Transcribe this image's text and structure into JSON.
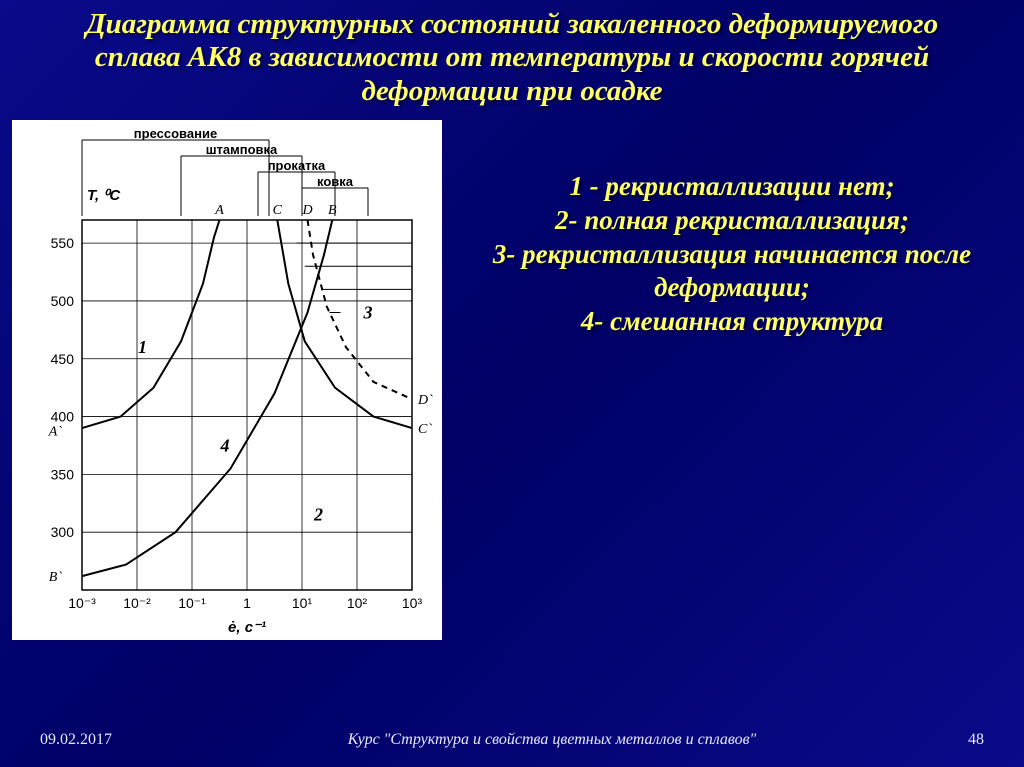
{
  "title": "Диаграмма структурных состояний закаленного деформируемого сплава АК8 в зависимости от температуры и скорости горячей деформации при осадке",
  "title_fontsize": 29,
  "legend_fontsize": 27,
  "legend": {
    "line1": "1 - рекристаллизации нет;",
    "line2": "2- полная рекристаллизация;",
    "line3": "3- рекристаллизация начинается после деформации;",
    "line4": "4- смешанная структура"
  },
  "footer": {
    "date": "09.02.2017",
    "course": "Курс \"Структура и свойства цветных металлов и сплавов\"",
    "page": "48"
  },
  "chart": {
    "background": "#ffffff",
    "grid_color": "#000000",
    "line_color": "#000000",
    "line_width": 2,
    "y_axis_label": "T, ⁰C",
    "x_axis_label": "ė, c⁻¹",
    "y_ticks": [
      250,
      300,
      350,
      400,
      450,
      500,
      550
    ],
    "y_tick_labels": [
      "",
      "300",
      "350",
      "400",
      "450",
      "500",
      "550"
    ],
    "ylim": [
      250,
      570
    ],
    "x_ticks_exp": [
      -3,
      -2,
      -1,
      0,
      1,
      2,
      3
    ],
    "x_tick_labels": [
      "10⁻³",
      "10⁻²",
      "10⁻¹",
      "1",
      "10¹",
      "10²",
      "10³"
    ],
    "xlim_exp": [
      -3,
      3
    ],
    "top_process_bars": [
      {
        "label": "прессование",
        "x_start_exp": -3,
        "x_end_exp": 0.4
      },
      {
        "label": "штамповка",
        "x_start_exp": -1.2,
        "x_end_exp": 1.0
      },
      {
        "label": "прокатка",
        "x_start_exp": 0.2,
        "x_end_exp": 1.6
      },
      {
        "label": "ковка",
        "x_start_exp": 1.0,
        "x_end_exp": 2.2
      }
    ],
    "top_letters": [
      {
        "text": "A",
        "x_exp": -0.5
      },
      {
        "text": "C",
        "x_exp": 0.55
      },
      {
        "text": "D",
        "x_exp": 1.1
      },
      {
        "text": "B",
        "x_exp": 1.55
      }
    ],
    "region_numbers": [
      {
        "text": "1",
        "x_exp": -1.9,
        "y": 455
      },
      {
        "text": "2",
        "x_exp": 1.3,
        "y": 310
      },
      {
        "text": "3",
        "x_exp": 2.2,
        "y": 485
      },
      {
        "text": "4",
        "x_exp": -0.4,
        "y": 370
      }
    ],
    "right_labels": [
      {
        "text": "D`",
        "y": 415
      },
      {
        "text": "C`",
        "y": 390
      }
    ],
    "left_labels": [
      {
        "text": "A`",
        "y": 388
      },
      {
        "text": "B`",
        "y": 262
      }
    ],
    "curve_AAprime": [
      {
        "x": -3,
        "y": 390
      },
      {
        "x": -2.3,
        "y": 400
      },
      {
        "x": -1.7,
        "y": 425
      },
      {
        "x": -1.2,
        "y": 465
      },
      {
        "x": -0.8,
        "y": 515
      },
      {
        "x": -0.6,
        "y": 555
      },
      {
        "x": -0.5,
        "y": 570
      }
    ],
    "curve_BBprime": [
      {
        "x": -3,
        "y": 262
      },
      {
        "x": -2.2,
        "y": 272
      },
      {
        "x": -1.3,
        "y": 300
      },
      {
        "x": -0.3,
        "y": 355
      },
      {
        "x": 0.5,
        "y": 420
      },
      {
        "x": 1.1,
        "y": 490
      },
      {
        "x": 1.4,
        "y": 540
      },
      {
        "x": 1.55,
        "y": 570
      }
    ],
    "curve_CCprime": [
      {
        "x": 0.55,
        "y": 570
      },
      {
        "x": 0.75,
        "y": 515
      },
      {
        "x": 1.05,
        "y": 465
      },
      {
        "x": 1.6,
        "y": 425
      },
      {
        "x": 2.3,
        "y": 400
      },
      {
        "x": 3,
        "y": 390
      }
    ],
    "curve_DDprime_dashed": [
      {
        "x": 1.1,
        "y": 570
      },
      {
        "x": 1.2,
        "y": 540
      },
      {
        "x": 1.45,
        "y": 495
      },
      {
        "x": 1.8,
        "y": 460
      },
      {
        "x": 2.3,
        "y": 430
      },
      {
        "x": 3,
        "y": 415
      }
    ],
    "hatch_region3_lines": [
      {
        "x1": 1.0,
        "y1": 570,
        "x2": 3,
        "y2": 570
      },
      {
        "x1": 0.9,
        "y1": 550,
        "x2": 3,
        "y2": 550
      },
      {
        "x1": 1.05,
        "y1": 530,
        "x2": 3,
        "y2": 530
      },
      {
        "x1": 1.35,
        "y1": 510,
        "x2": 3,
        "y2": 510
      },
      {
        "x1": 1.7,
        "y1": 490,
        "x2": 1.5,
        "y2": 490
      }
    ]
  }
}
